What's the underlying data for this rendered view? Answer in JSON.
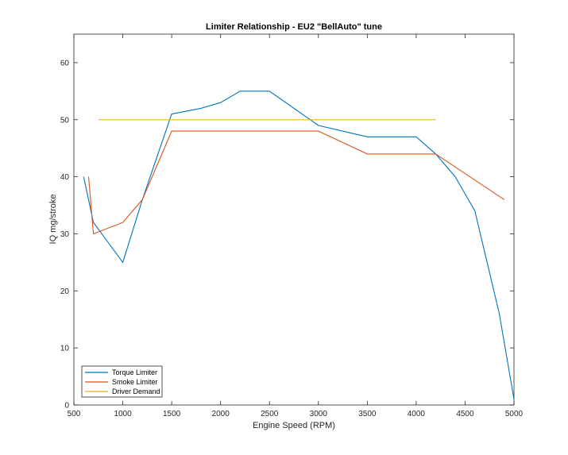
{
  "chart_data": {
    "type": "line",
    "title": "Limiter Relationship - EU2 \"BellAuto\" tune",
    "xlabel": "Engine Speed (RPM)",
    "ylabel": "IQ mg/stroke",
    "xlim": [
      500,
      5000
    ],
    "ylim": [
      0,
      65
    ],
    "xticks": [
      500,
      1000,
      1500,
      2000,
      2500,
      3000,
      3500,
      4000,
      4500,
      5000
    ],
    "yticks": [
      0,
      10,
      20,
      30,
      40,
      50,
      60
    ],
    "grid": false,
    "legend_position": "bottom-left",
    "series": [
      {
        "name": "Torque Limiter",
        "color": "#0072BD",
        "x": [
          600,
          700,
          1000,
          1200,
          1500,
          1800,
          2000,
          2200,
          2500,
          3000,
          3500,
          4000,
          4200,
          4400,
          4600,
          4850,
          5000
        ],
        "y": [
          40,
          32,
          25,
          36,
          51,
          52,
          53,
          55,
          55,
          49,
          47,
          47,
          44,
          40,
          34,
          16,
          1
        ]
      },
      {
        "name": "Smoke Limiter",
        "color": "#D95319",
        "x": [
          650,
          700,
          1000,
          1200,
          1500,
          2000,
          3000,
          3500,
          4000,
          4200,
          4900
        ],
        "y": [
          40,
          30,
          32,
          36,
          48,
          48,
          48,
          44,
          44,
          44,
          36
        ]
      },
      {
        "name": "Driver Demand",
        "color": "#EDB120",
        "x": [
          750,
          4200
        ],
        "y": [
          50,
          50
        ]
      }
    ]
  }
}
